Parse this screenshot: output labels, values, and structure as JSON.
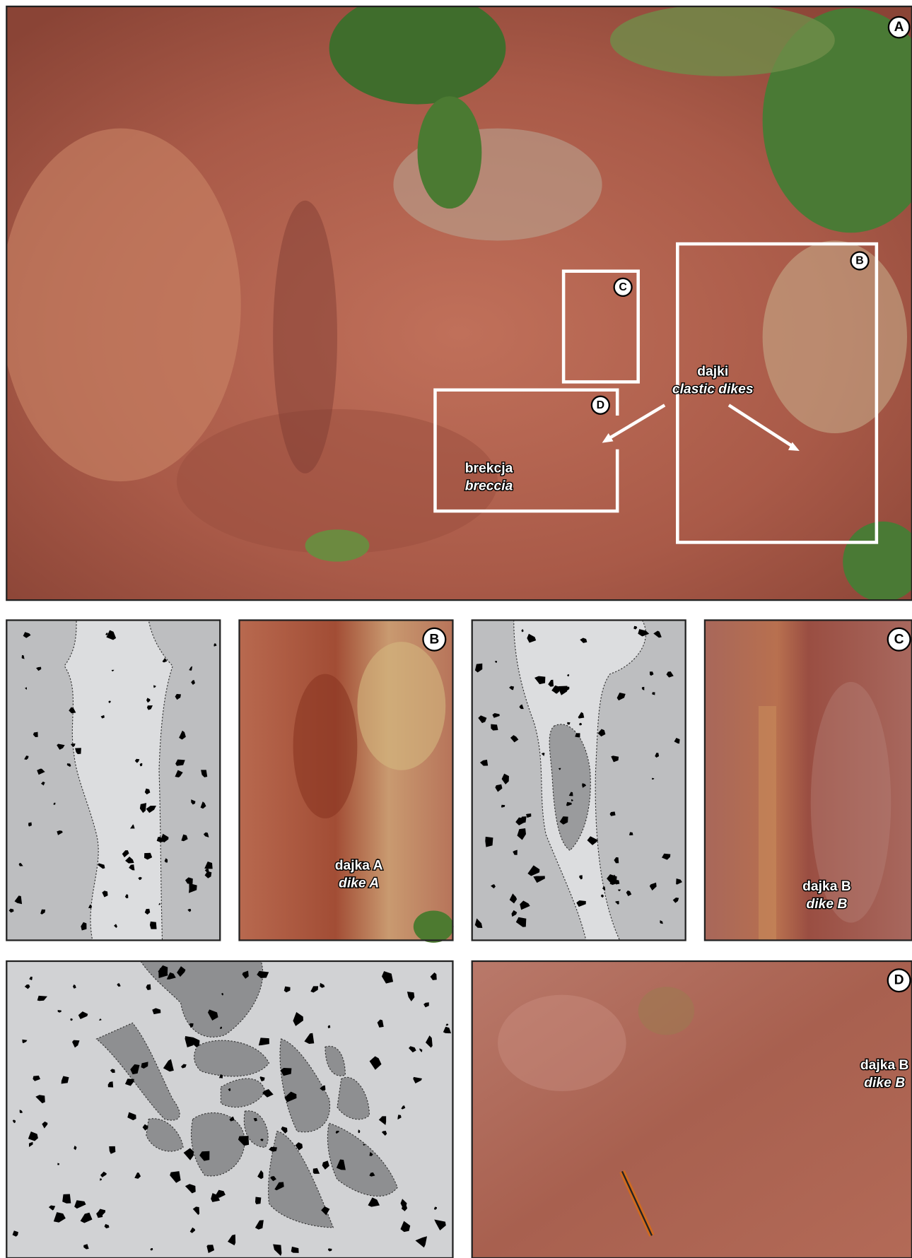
{
  "panel_a": {
    "letter": "A",
    "boxes": [
      {
        "letter": "B"
      },
      {
        "letter": "C"
      },
      {
        "letter": "D"
      }
    ],
    "dikes_label": {
      "polish": "dajki",
      "english": "clastic dikes"
    },
    "breccia_label": {
      "polish": "brekcja",
      "english": "breccia"
    }
  },
  "panel_b": {
    "letter": "B",
    "polish": "dajka A",
    "english": "dike A"
  },
  "panel_c": {
    "letter": "C",
    "polish": "dajka B",
    "english": "dike B"
  },
  "panel_d": {
    "letter": "D",
    "polish": "dajka B",
    "english": "dike B"
  }
}
